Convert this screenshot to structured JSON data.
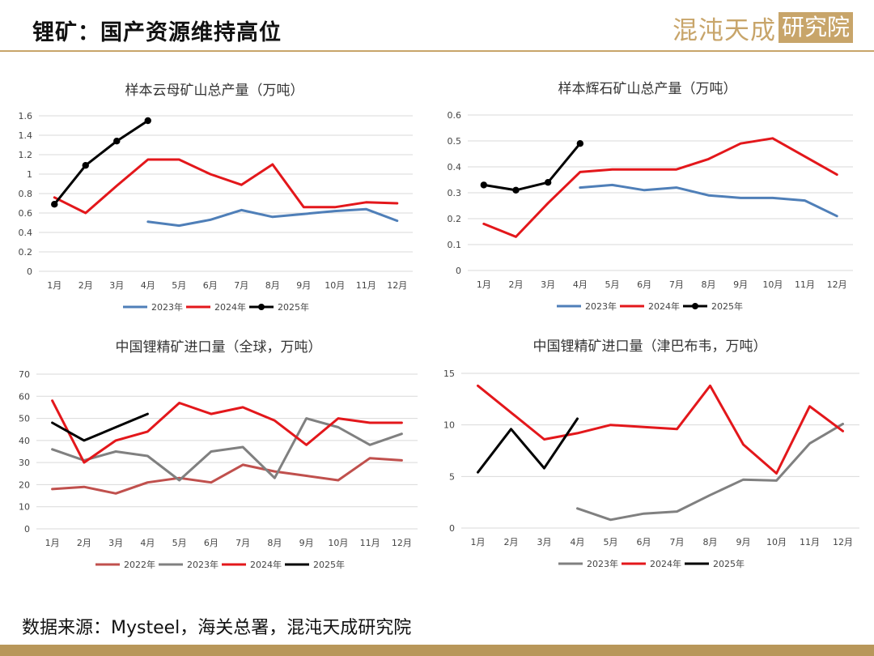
{
  "header": {
    "title": "锂矿：国产资源维持高位",
    "logo_text": "混沌天成",
    "logo_box": "研究院"
  },
  "footer": {
    "source": "数据来源：Mysteel，海关总署，混沌天成研究院"
  },
  "chart_data": [
    {
      "type": "line",
      "title": "样本云母矿山总产量（万吨）",
      "categories": [
        "1月",
        "2月",
        "3月",
        "4月",
        "5月",
        "6月",
        "7月",
        "8月",
        "9月",
        "10月",
        "11月",
        "12月"
      ],
      "ylim": [
        0,
        1.6
      ],
      "yticks": [
        0,
        0.2,
        0.4,
        0.6,
        0.8,
        1,
        1.2,
        1.4,
        1.6
      ],
      "grid": true,
      "legend": "bottom",
      "series": [
        {
          "name": "2023年",
          "color": "#4f7fb8",
          "markers": false,
          "values": [
            null,
            null,
            null,
            0.51,
            0.47,
            0.53,
            0.63,
            0.56,
            0.59,
            0.62,
            0.64,
            0.52
          ]
        },
        {
          "name": "2024年",
          "color": "#e3171b",
          "markers": false,
          "values": [
            0.76,
            0.6,
            0.88,
            1.15,
            1.15,
            1.0,
            0.89,
            1.1,
            0.66,
            0.66,
            0.71,
            0.7
          ]
        },
        {
          "name": "2025年",
          "color": "#000000",
          "markers": true,
          "values": [
            0.69,
            1.09,
            1.34,
            1.55,
            null,
            null,
            null,
            null,
            null,
            null,
            null,
            null
          ]
        }
      ]
    },
    {
      "type": "line",
      "title": "样本辉石矿山总产量（万吨）",
      "categories": [
        "1月",
        "2月",
        "3月",
        "4月",
        "5月",
        "6月",
        "7月",
        "8月",
        "9月",
        "10月",
        "11月",
        "12月"
      ],
      "ylim": [
        0,
        0.6
      ],
      "yticks": [
        0,
        0.1,
        0.2,
        0.3,
        0.4,
        0.5,
        0.6
      ],
      "grid": true,
      "legend": "bottom",
      "series": [
        {
          "name": "2023年",
          "color": "#4f7fb8",
          "markers": false,
          "values": [
            null,
            null,
            null,
            0.32,
            0.33,
            0.31,
            0.32,
            0.29,
            0.28,
            0.28,
            0.27,
            0.21
          ]
        },
        {
          "name": "2024年",
          "color": "#e3171b",
          "markers": false,
          "values": [
            0.18,
            0.13,
            0.26,
            0.38,
            0.39,
            0.39,
            0.39,
            0.43,
            0.49,
            0.51,
            0.44,
            0.37
          ]
        },
        {
          "name": "2025年",
          "color": "#000000",
          "markers": true,
          "values": [
            0.33,
            0.31,
            0.34,
            0.49,
            null,
            null,
            null,
            null,
            null,
            null,
            null,
            null
          ]
        }
      ]
    },
    {
      "type": "line",
      "title": "中国锂精矿进口量（全球，万吨）",
      "categories": [
        "1月",
        "2月",
        "3月",
        "4月",
        "5月",
        "6月",
        "7月",
        "8月",
        "9月",
        "10月",
        "11月",
        "12月"
      ],
      "ylim": [
        0,
        70
      ],
      "yticks": [
        0,
        10,
        20,
        30,
        40,
        50,
        60,
        70
      ],
      "grid": true,
      "legend": "bottom",
      "series": [
        {
          "name": "2022年",
          "color": "#c0504d",
          "markers": false,
          "values": [
            18,
            19,
            16,
            21,
            23,
            21,
            29,
            26,
            24,
            22,
            32,
            31
          ]
        },
        {
          "name": "2023年",
          "color": "#808080",
          "markers": false,
          "values": [
            36,
            31,
            35,
            33,
            22,
            35,
            37,
            23,
            50,
            46,
            38,
            43
          ]
        },
        {
          "name": "2024年",
          "color": "#e3171b",
          "markers": false,
          "values": [
            58,
            30,
            40,
            44,
            57,
            52,
            55,
            49,
            38,
            50,
            48,
            48
          ]
        },
        {
          "name": "2025年",
          "color": "#000000",
          "markers": false,
          "values": [
            48,
            40,
            46,
            52,
            null,
            null,
            null,
            null,
            null,
            null,
            null,
            null
          ]
        }
      ]
    },
    {
      "type": "line",
      "title": "中国锂精矿进口量（津巴布韦，万吨）",
      "categories": [
        "1月",
        "2月",
        "3月",
        "4月",
        "5月",
        "6月",
        "7月",
        "8月",
        "9月",
        "10月",
        "11月",
        "12月"
      ],
      "ylim": [
        0,
        15
      ],
      "yticks": [
        0,
        5,
        10,
        15
      ],
      "grid": true,
      "legend": "bottom",
      "series": [
        {
          "name": "2023年",
          "color": "#808080",
          "markers": false,
          "values": [
            null,
            null,
            null,
            1.9,
            0.8,
            1.4,
            1.6,
            3.2,
            4.7,
            4.6,
            8.2,
            10.1
          ]
        },
        {
          "name": "2024年",
          "color": "#e3171b",
          "markers": false,
          "values": [
            13.8,
            11.2,
            8.6,
            9.2,
            10.0,
            9.8,
            9.6,
            13.8,
            8.1,
            5.3,
            11.8,
            9.4
          ]
        },
        {
          "name": "2025年",
          "color": "#000000",
          "markers": false,
          "values": [
            5.4,
            9.6,
            5.8,
            10.6,
            null,
            null,
            null,
            null,
            null,
            null,
            null,
            null
          ]
        }
      ]
    }
  ]
}
